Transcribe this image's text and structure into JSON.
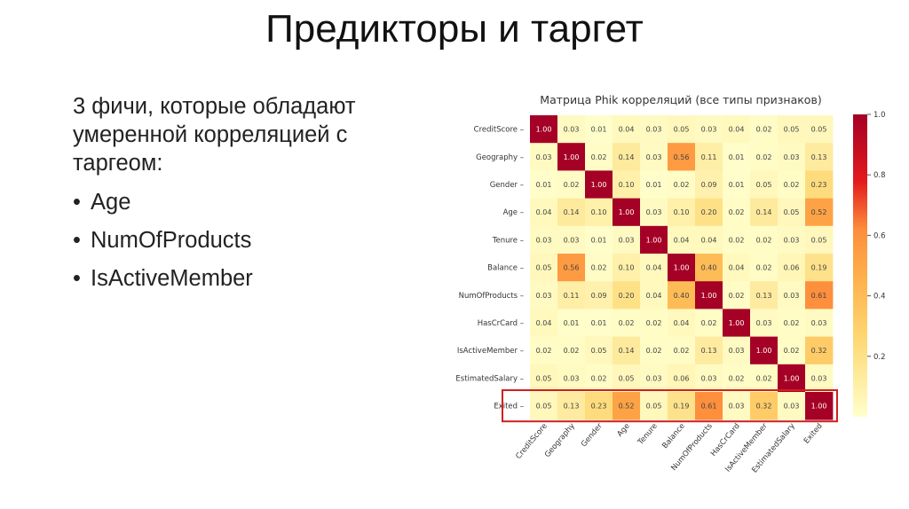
{
  "slide": {
    "title": "Предикторы и таргет",
    "intro": "3 фичи, которые обладают умеренной корреляцией с таргеом:",
    "bullet_symbol": "•",
    "bullets": [
      "Age",
      "NumOfProducts",
      "IsActiveMember"
    ]
  },
  "chart_data": {
    "type": "heatmap",
    "title": "Матрица Phik корреляций (все типы признаков)",
    "row_labels": [
      "CreditScore",
      "Geography",
      "Gender",
      "Age",
      "Tenure",
      "Balance",
      "NumOfProducts",
      "HasCrCard",
      "IsActiveMember",
      "EstimatedSalary",
      "Exited"
    ],
    "col_labels": [
      "CreditScore",
      "Geography",
      "Gender",
      "Age",
      "Tenure",
      "Balance",
      "NumOfProducts",
      "HasCrCard",
      "IsActiveMember",
      "EstimatedSalary",
      "Exited"
    ],
    "values": [
      [
        1.0,
        0.03,
        0.01,
        0.04,
        0.03,
        0.05,
        0.03,
        0.04,
        0.02,
        0.05,
        0.05
      ],
      [
        0.03,
        1.0,
        0.02,
        0.14,
        0.03,
        0.56,
        0.11,
        0.01,
        0.02,
        0.03,
        0.13
      ],
      [
        0.01,
        0.02,
        1.0,
        0.1,
        0.01,
        0.02,
        0.09,
        0.01,
        0.05,
        0.02,
        0.23
      ],
      [
        0.04,
        0.14,
        0.1,
        1.0,
        0.03,
        0.1,
        0.2,
        0.02,
        0.14,
        0.05,
        0.52
      ],
      [
        0.03,
        0.03,
        0.01,
        0.03,
        1.0,
        0.04,
        0.04,
        0.02,
        0.02,
        0.03,
        0.05
      ],
      [
        0.05,
        0.56,
        0.02,
        0.1,
        0.04,
        1.0,
        0.4,
        0.04,
        0.02,
        0.06,
        0.19
      ],
      [
        0.03,
        0.11,
        0.09,
        0.2,
        0.04,
        0.4,
        1.0,
        0.02,
        0.13,
        0.03,
        0.61
      ],
      [
        0.04,
        0.01,
        0.01,
        0.02,
        0.02,
        0.04,
        0.02,
        1.0,
        0.03,
        0.02,
        0.03
      ],
      [
        0.02,
        0.02,
        0.05,
        0.14,
        0.02,
        0.02,
        0.13,
        0.03,
        1.0,
        0.02,
        0.32
      ],
      [
        0.05,
        0.03,
        0.02,
        0.05,
        0.03,
        0.06,
        0.03,
        0.02,
        0.02,
        1.0,
        0.03
      ],
      [
        0.05,
        0.13,
        0.23,
        0.52,
        0.05,
        0.19,
        0.61,
        0.03,
        0.32,
        0.03,
        1.0
      ]
    ],
    "colorbar": {
      "range": [
        0,
        1.0
      ],
      "ticks": [
        0.2,
        0.4,
        0.6,
        0.8,
        1.0
      ],
      "tick_labels": [
        "0.2",
        "0.4",
        "0.6",
        "0.8",
        "1.0"
      ],
      "colormap": "YlOrRd"
    },
    "highlighted_row": "Exited",
    "highlight_color": "#d02020"
  }
}
